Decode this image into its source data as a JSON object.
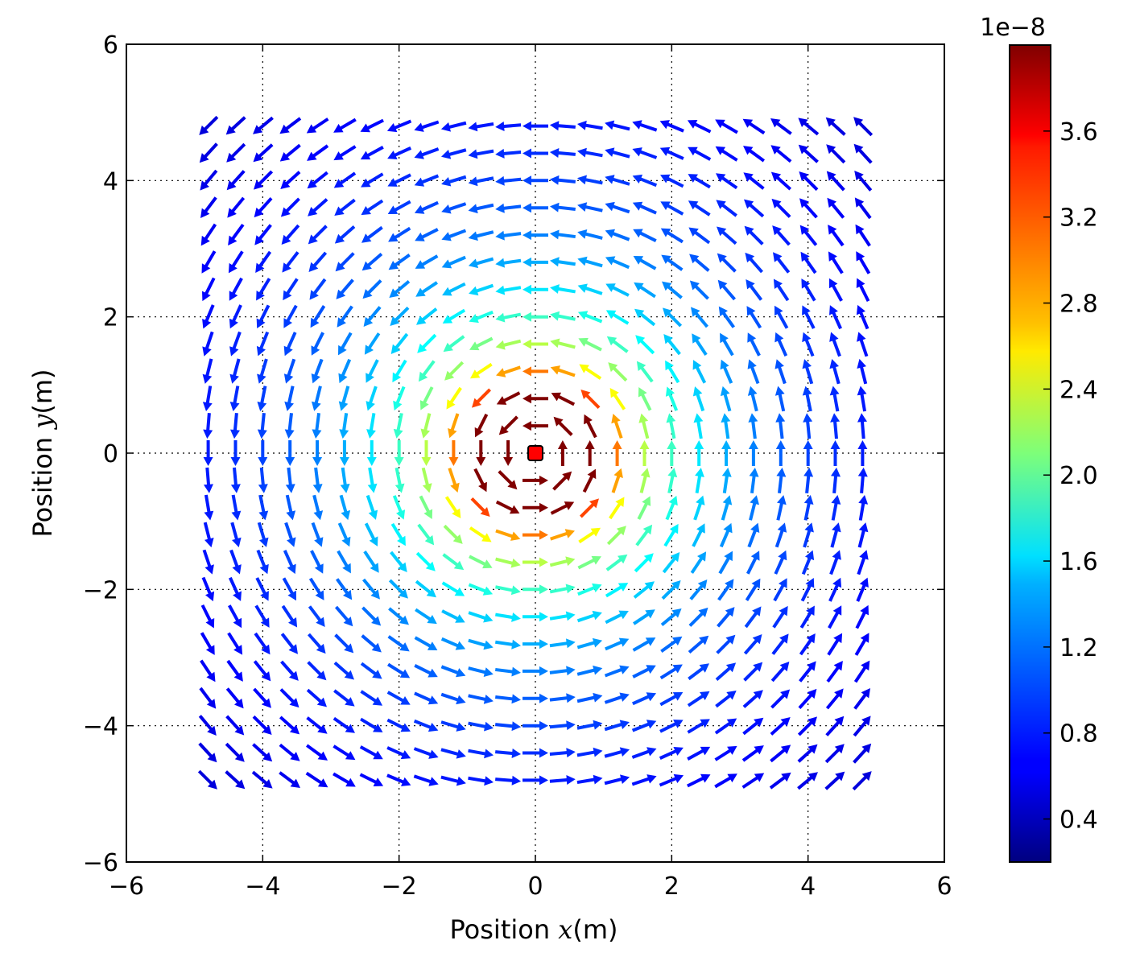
{
  "chart_data": {
    "type": "quiver",
    "xlabel": {
      "prefix": "Position ",
      "var": "x",
      "suffix": "(m)"
    },
    "ylabel": {
      "prefix": "Position ",
      "var": "y",
      "suffix": "(m)"
    },
    "xlim": [
      -6,
      6
    ],
    "ylim": [
      -6,
      6
    ],
    "xticks": [
      -6,
      -4,
      -2,
      0,
      2,
      4,
      6
    ],
    "yticks": [
      -6,
      -4,
      -2,
      0,
      2,
      4,
      6
    ],
    "xtick_labels": [
      "−6",
      "−4",
      "−2",
      "0",
      "2",
      "4",
      "6"
    ],
    "ytick_labels": [
      "−6",
      "−4",
      "−2",
      "0",
      "2",
      "4",
      "6"
    ],
    "grid": true,
    "field": {
      "description": "circulating field around a line source at the origin",
      "x_start": -4.8,
      "x_step": 0.4,
      "nx": 25,
      "y_start": -4.8,
      "y_step": 0.4,
      "ny": 25,
      "rotation": "counterclockwise",
      "magnitude_at_1m": 3.7e-08,
      "magnitude_clip": 4e-08
    },
    "source_marker": {
      "x": 0,
      "y": 0,
      "color": "#ff0000"
    },
    "colorbar": {
      "colormap": "jet",
      "offset_label": "1e−8",
      "range": [
        0.2,
        4.0
      ],
      "ticks": [
        0.4,
        0.8,
        1.2,
        1.6,
        2.0,
        2.4,
        2.8,
        3.2,
        3.6
      ],
      "tick_labels": [
        "0.4",
        "0.8",
        "1.2",
        "1.6",
        "2.0",
        "2.4",
        "2.8",
        "3.2",
        "3.6"
      ]
    }
  }
}
